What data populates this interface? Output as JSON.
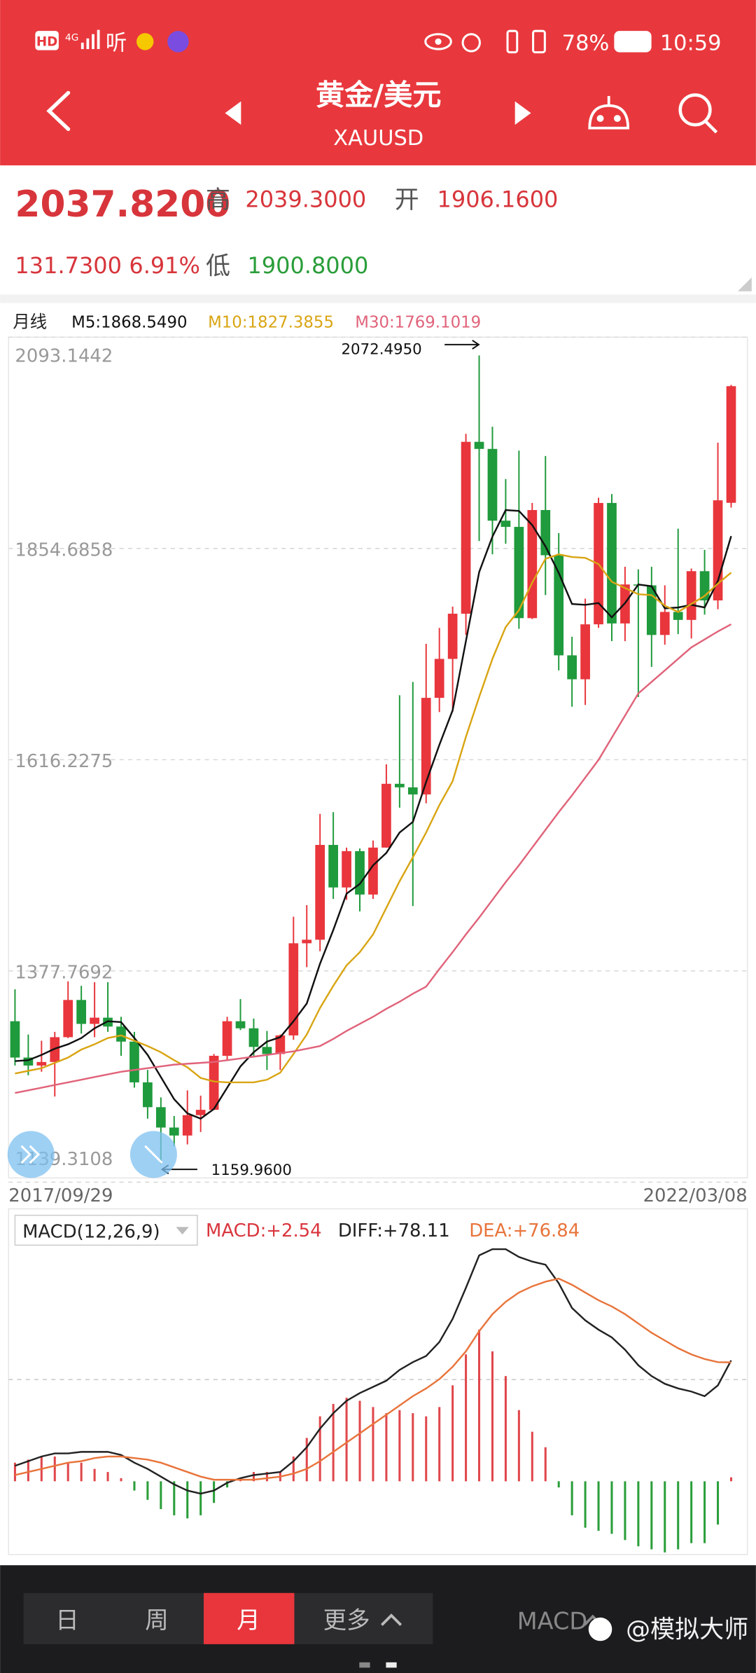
{
  "status_bar": {
    "left": [
      "HD",
      "4G",
      "听"
    ],
    "battery": "78%",
    "time": "10:59"
  },
  "header": {
    "title": "黄金/美元",
    "symbol": "XAUUSD"
  },
  "quote": {
    "price": "2037.8200",
    "high_label": "高",
    "high": "2039.3000",
    "open_label": "开",
    "open": "1906.1600",
    "change": "131.7300",
    "change_pct": "6.91%",
    "low_label": "低",
    "low": "1900.8000"
  },
  "chart_data": [
    {
      "type": "candlestick",
      "period_label": "月线",
      "up_color": "#e8363c",
      "down_color": "#1f9a3c",
      "open": [
        1321,
        1280,
        1271,
        1275,
        1303,
        1345,
        1318,
        1325,
        1315,
        1298,
        1252,
        1224,
        1201,
        1192,
        1215,
        1221,
        1282,
        1321,
        1313,
        1292,
        1284,
        1305,
        1409,
        1413,
        1520,
        1472,
        1513,
        1464,
        1517,
        1589,
        1585,
        1577,
        1686,
        1730,
        1781,
        1975,
        1967,
        1886,
        1879,
        1776,
        1898,
        1847,
        1734,
        1707,
        1769,
        1906,
        1770,
        1814,
        1813,
        1757,
        1783,
        1774,
        1829,
        1796,
        1906.16
      ],
      "high": [
        1357,
        1306,
        1299,
        1309,
        1366,
        1361,
        1365,
        1365,
        1326,
        1309,
        1266,
        1235,
        1214,
        1243,
        1237,
        1284,
        1326,
        1346,
        1324,
        1310,
        1306,
        1439,
        1452,
        1555,
        1557,
        1517,
        1516,
        1525,
        1611,
        1689,
        1704,
        1747,
        1765,
        1789,
        1984,
        2072.495,
        1992,
        1933,
        1965,
        1906,
        1959,
        1872,
        1755,
        1798,
        1912,
        1916,
        1834,
        1831,
        1834,
        1813,
        1877,
        1832,
        1853,
        1974,
        2039.3
      ],
      "low": [
        1271,
        1260,
        1264,
        1236,
        1302,
        1307,
        1303,
        1309,
        1282,
        1246,
        1211,
        1159.96,
        1180,
        1182,
        1196,
        1221,
        1276,
        1311,
        1281,
        1266,
        1266,
        1300,
        1382,
        1400,
        1459,
        1458,
        1445,
        1459,
        1517,
        1562,
        1451,
        1567,
        1670,
        1670,
        1757,
        1863,
        1848,
        1860,
        1764,
        1775,
        1802,
        1717,
        1676,
        1678,
        1765,
        1750,
        1750,
        1687,
        1721,
        1746,
        1758,
        1753,
        1780,
        1786,
        1900.8
      ],
      "close": [
        1280,
        1271,
        1275,
        1303,
        1345,
        1318,
        1325,
        1315,
        1298,
        1252,
        1224,
        1201,
        1192,
        1215,
        1221,
        1282,
        1321,
        1313,
        1292,
        1284,
        1305,
        1409,
        1413,
        1520,
        1472,
        1513,
        1464,
        1517,
        1589,
        1585,
        1577,
        1686,
        1730,
        1781,
        1975,
        1967,
        1886,
        1879,
        1776,
        1898,
        1847,
        1734,
        1707,
        1769,
        1906,
        1770,
        1814,
        1813,
        1757,
        1783,
        1774,
        1829,
        1796,
        1909,
        2037.82
      ],
      "series": [
        {
          "name": "M5:1868.5490",
          "color": "#111111",
          "values": [
            1276,
            1277,
            1283,
            1290,
            1295,
            1302,
            1313,
            1321,
            1320,
            1302,
            1283,
            1258,
            1233,
            1217,
            1211,
            1222,
            1246,
            1270,
            1286,
            1298,
            1303,
            1321,
            1341,
            1386,
            1424,
            1465,
            1476,
            1497,
            1511,
            1534,
            1546,
            1591,
            1633,
            1672,
            1750,
            1828,
            1868,
            1898,
            1897,
            1881,
            1857,
            1827,
            1792,
            1791,
            1793,
            1777,
            1793,
            1814,
            1812,
            1787,
            1788,
            1791,
            1788,
            1818,
            1868.549
          ]
        },
        {
          "name": "M10:1827.3855",
          "color": "#d9a514",
          "values": [
            1262,
            1265,
            1268,
            1274,
            1280,
            1289,
            1295,
            1302,
            1305,
            1299,
            1293,
            1286,
            1277,
            1269,
            1257,
            1253,
            1252,
            1252,
            1252,
            1255,
            1263,
            1284,
            1306,
            1336,
            1361,
            1384,
            1399,
            1419,
            1449,
            1479,
            1506,
            1534,
            1565,
            1592,
            1642,
            1687,
            1730,
            1766,
            1785,
            1816,
            1843,
            1848,
            1845,
            1844,
            1837,
            1817,
            1810,
            1803,
            1802,
            1790,
            1783,
            1792,
            1801,
            1815,
            1827.3855
          ]
        },
        {
          "name": "M30:1769.1019",
          "color": "#e0637a",
          "values": [
            1240,
            1243,
            1246,
            1249,
            1252,
            1255,
            1258,
            1261,
            1264,
            1266,
            1268,
            1270,
            1272,
            1273,
            1274,
            1275,
            1277,
            1279,
            1281,
            1283,
            1285,
            1287,
            1290,
            1293,
            1301,
            1310,
            1318,
            1326,
            1335,
            1343,
            1352,
            1360,
            1380,
            1399,
            1419,
            1438,
            1458,
            1478,
            1497,
            1517,
            1537,
            1557,
            1576,
            1596,
            1616,
            1641,
            1666,
            1691,
            1704,
            1717,
            1730,
            1743,
            1752,
            1761,
            1769.1019
          ]
        }
      ],
      "ylim": [
        1139.3108,
        2093.1442
      ],
      "yticks": [
        1139.3108,
        1377.7692,
        1616.2275,
        1854.6858,
        2093.1442
      ],
      "grid": true,
      "annotations": [
        "2072.4950",
        "1159.9600"
      ],
      "x_labels": [
        "2017/09/29",
        "2022/03/08"
      ]
    },
    {
      "type": "macd",
      "indicator_label": "MACD(12,26,9)",
      "bars": {
        "name": "MACD:+2.54",
        "color": "#d9363e",
        "up_color": "#e0474c",
        "down_color": "#2b9e3a",
        "values": [
          12,
          14,
          16,
          16,
          12,
          12,
          8,
          6,
          2,
          -6,
          -12,
          -18,
          -22,
          -24,
          -22,
          -14,
          -4,
          2,
          6,
          6,
          6,
          16,
          28,
          42,
          50,
          54,
          52,
          48,
          44,
          46,
          44,
          42,
          48,
          62,
          82,
          98,
          84,
          68,
          46,
          32,
          22,
          -4,
          -22,
          -30,
          -32,
          -34,
          -38,
          -42,
          -44,
          -46,
          -44,
          -40,
          -40,
          -28,
          2.54
        ]
      },
      "series": [
        {
          "name": "DIFF:+78.11",
          "color": "#222222",
          "values": [
            10,
            13,
            16,
            18,
            18,
            19,
            19,
            19,
            17,
            12,
            8,
            3,
            -2,
            -6,
            -8,
            -6,
            -1,
            2,
            4,
            5,
            6,
            13,
            22,
            34,
            44,
            52,
            57,
            61,
            65,
            72,
            77,
            81,
            90,
            105,
            125,
            146,
            150,
            150,
            145,
            142,
            140,
            128,
            112,
            104,
            98,
            93,
            85,
            75,
            68,
            63,
            60,
            58,
            55,
            62,
            78.11
          ]
        },
        {
          "name": "DEA:+76.84",
          "color": "#e8743b",
          "values": [
            4,
            6,
            8,
            10,
            12,
            13,
            15,
            16,
            16,
            15,
            14,
            12,
            9,
            6,
            3,
            1,
            1,
            1,
            1,
            2,
            3,
            5,
            8,
            13,
            19,
            25,
            31,
            37,
            43,
            49,
            55,
            60,
            66,
            74,
            84,
            97,
            108,
            116,
            122,
            126,
            129,
            131,
            127,
            122,
            117,
            113,
            108,
            102,
            96,
            91,
            86,
            82,
            79,
            77,
            76.84
          ]
        }
      ],
      "ylim": [
        -46,
        154
      ]
    }
  ],
  "bottom_bar": {
    "tabs": [
      "日",
      "周",
      "月",
      "更多"
    ],
    "indicator": "MACD",
    "watermark": "@模拟大师"
  }
}
